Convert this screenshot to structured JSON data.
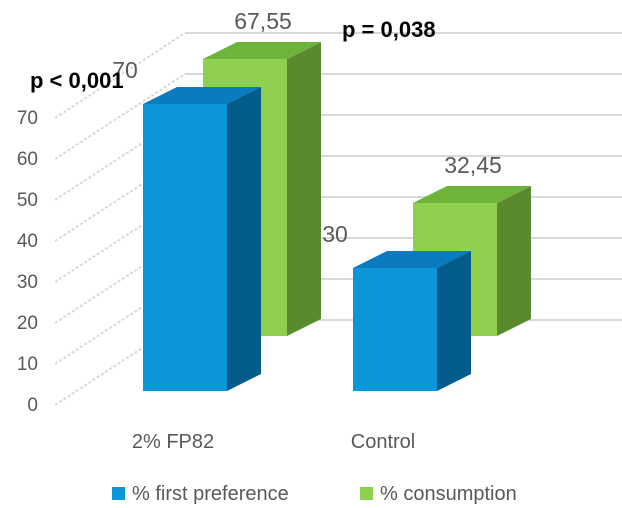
{
  "chart_data": {
    "type": "bar",
    "three_d": true,
    "categories": [
      "2% FP82",
      "Control"
    ],
    "series": [
      {
        "name": "% first preference",
        "values": [
          70,
          30
        ],
        "labels": [
          "70",
          "30"
        ],
        "color": "#0a96d8",
        "side_color": "#045c8c",
        "top_color": "#0c7ac0"
      },
      {
        "name": "% consumption",
        "values": [
          67.55,
          32.45
        ],
        "labels": [
          "67,55",
          "32,45"
        ],
        "color": "#8fd14f",
        "side_color": "#5b8a2e",
        "top_color": "#6fb43a"
      }
    ],
    "ylim": [
      0,
      70
    ],
    "yticks": [
      "0",
      "10",
      "20",
      "30",
      "40",
      "50",
      "60",
      "70"
    ],
    "grid": true,
    "legend": "bottom",
    "annotations": [
      "p < 0,001",
      "p = 0,038"
    ]
  }
}
